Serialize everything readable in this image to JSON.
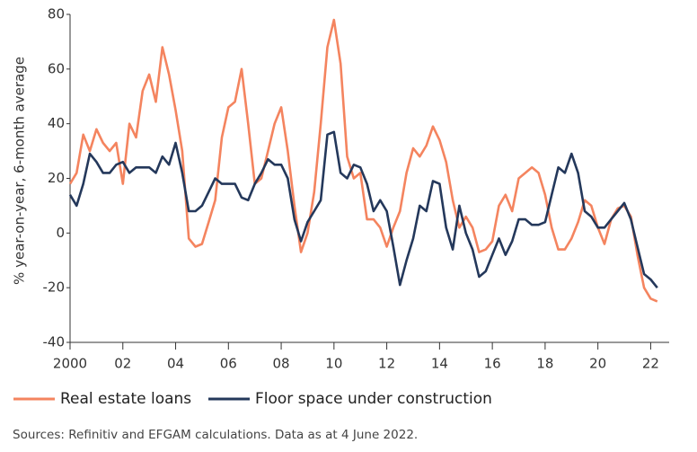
{
  "chart_data": {
    "type": "line",
    "ylabel": "% year-on-year, 6-month average",
    "source": "Sources: Refinitiv and EFGAM calculations. Data as at 4 June 2022.",
    "x": [
      2000,
      2000.25,
      2000.5,
      2000.75,
      2001,
      2001.25,
      2001.5,
      2001.75,
      2002,
      2002.25,
      2002.5,
      2002.75,
      2003,
      2003.25,
      2003.5,
      2003.75,
      2004,
      2004.25,
      2004.5,
      2004.75,
      2005,
      2005.25,
      2005.5,
      2005.75,
      2006,
      2006.25,
      2006.5,
      2006.75,
      2007,
      2007.25,
      2007.5,
      2007.75,
      2008,
      2008.25,
      2008.5,
      2008.75,
      2009,
      2009.25,
      2009.5,
      2009.75,
      2010,
      2010.25,
      2010.5,
      2010.75,
      2011,
      2011.25,
      2011.5,
      2011.75,
      2012,
      2012.25,
      2012.5,
      2012.75,
      2013,
      2013.25,
      2013.5,
      2013.75,
      2014,
      2014.25,
      2014.5,
      2014.75,
      2015,
      2015.25,
      2015.5,
      2015.75,
      2016,
      2016.25,
      2016.5,
      2016.75,
      2017,
      2017.25,
      2017.5,
      2017.75,
      2018,
      2018.25,
      2018.5,
      2018.75,
      2019,
      2019.25,
      2019.5,
      2019.75,
      2020,
      2020.25,
      2020.5,
      2020.75,
      2021,
      2021.25,
      2021.5,
      2021.75,
      2022,
      2022.25
    ],
    "series": [
      {
        "name": "Real estate loans",
        "color": "#f4845f",
        "values": [
          18,
          22,
          36,
          30,
          38,
          33,
          30,
          33,
          18,
          40,
          35,
          52,
          58,
          48,
          68,
          58,
          45,
          30,
          -2,
          -5,
          -4,
          4,
          12,
          35,
          46,
          48,
          60,
          40,
          18,
          20,
          30,
          40,
          46,
          30,
          10,
          -7,
          0,
          15,
          40,
          68,
          78,
          62,
          28,
          20,
          22,
          5,
          5,
          2,
          -5,
          2,
          8,
          22,
          31,
          28,
          32,
          39,
          34,
          26,
          12,
          2,
          6,
          2,
          -7,
          -6,
          -3,
          10,
          14,
          8,
          20,
          22,
          24,
          22,
          14,
          2,
          -6,
          -6,
          -2,
          4,
          12,
          10,
          2,
          -4,
          5,
          9,
          10,
          6,
          -8,
          -20,
          -24,
          -25
        ]
      },
      {
        "name": "Floor space under construction",
        "color": "#24385b",
        "values": [
          14,
          10,
          18,
          29,
          26,
          22,
          22,
          25,
          26,
          22,
          24,
          24,
          24,
          22,
          28,
          25,
          33,
          22,
          8,
          8,
          10,
          15,
          20,
          18,
          18,
          18,
          13,
          12,
          18,
          22,
          27,
          25,
          25,
          20,
          5,
          -3,
          4,
          8,
          12,
          36,
          37,
          22,
          20,
          25,
          24,
          18,
          8,
          12,
          8,
          -5,
          -19,
          -10,
          -2,
          10,
          8,
          19,
          18,
          2,
          -6,
          10,
          0,
          -6,
          -16,
          -14,
          -8,
          -2,
          -8,
          -3,
          5,
          5,
          3,
          3,
          4,
          14,
          24,
          22,
          29,
          22,
          8,
          6,
          2,
          2,
          5,
          8,
          11,
          5,
          -5,
          -15,
          -17,
          -20
        ]
      }
    ],
    "xlim": [
      2000,
      2022.7
    ],
    "xticks": [
      2000,
      {
        "value": 2002,
        "label": "02"
      },
      {
        "value": 2004,
        "label": "04"
      },
      {
        "value": 2006,
        "label": "06"
      },
      {
        "value": 2008,
        "label": "08"
      },
      {
        "value": 2010,
        "label": "10"
      },
      {
        "value": 2012,
        "label": "12"
      },
      {
        "value": 2014,
        "label": "14"
      },
      {
        "value": 2016,
        "label": "16"
      },
      {
        "value": 2018,
        "label": "18"
      },
      {
        "value": 2020,
        "label": "20"
      },
      {
        "value": 2022,
        "label": "22"
      }
    ],
    "ylim": [
      -40,
      80
    ],
    "yticks": [
      -40,
      -20,
      0,
      20,
      40,
      60,
      80
    ],
    "grid": false
  }
}
